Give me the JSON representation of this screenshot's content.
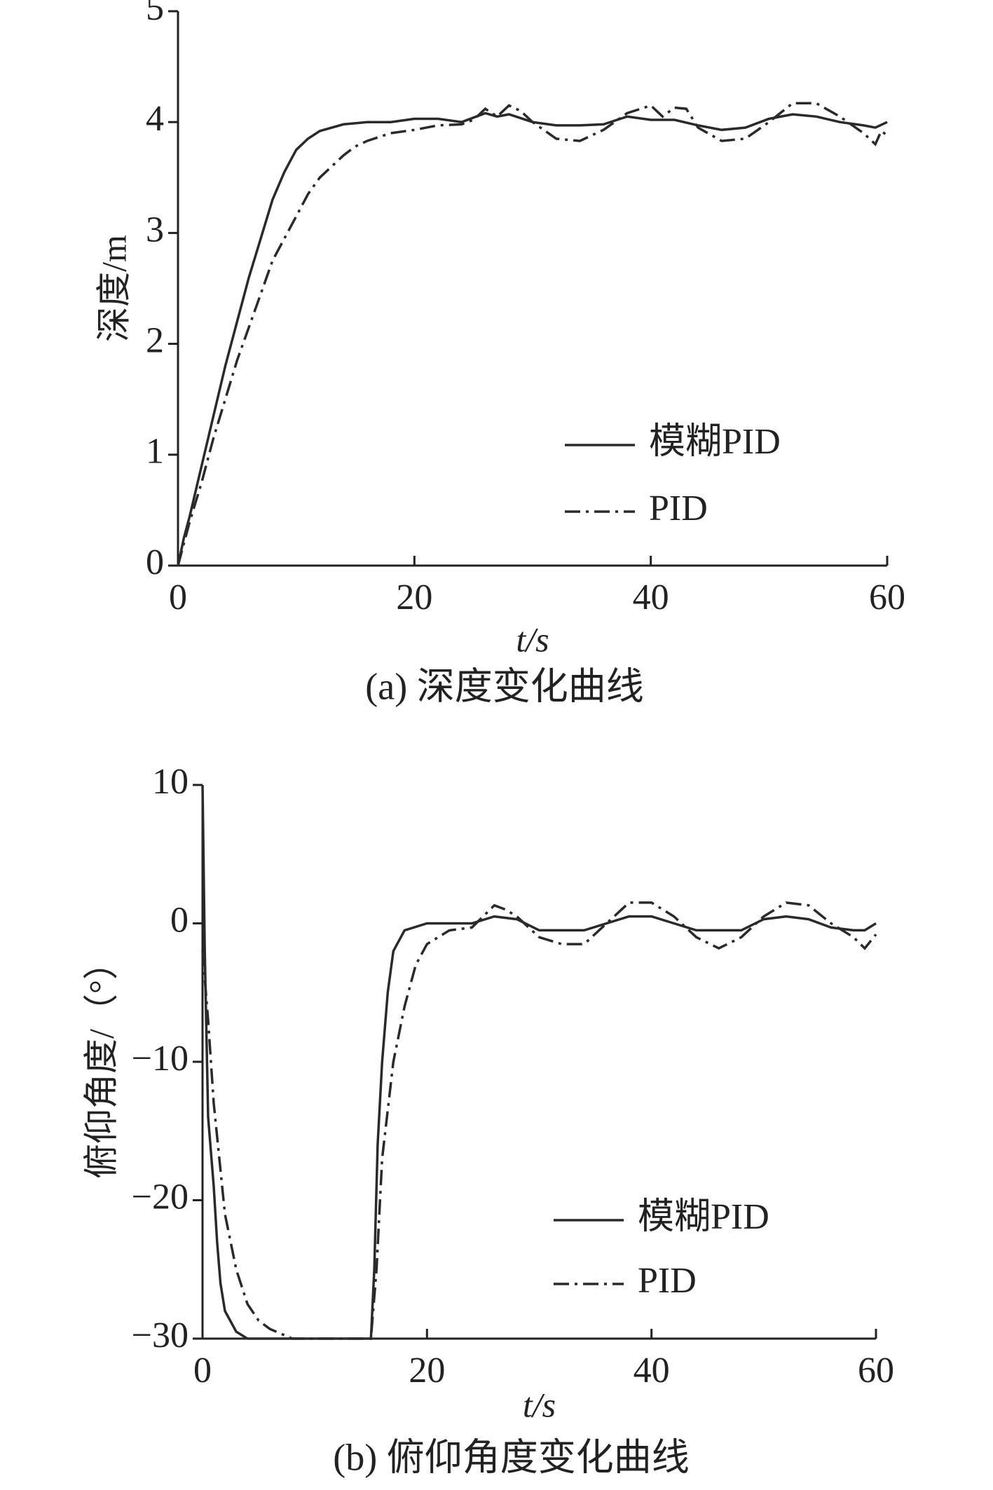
{
  "chart_data": [
    {
      "type": "line",
      "caption": "(a) 深度变化曲线",
      "x_label": "t/s",
      "y_label": "深度/m",
      "xlim": [
        0,
        60
      ],
      "ylim": [
        0,
        5
      ],
      "xticks": [
        0,
        20,
        40,
        60
      ],
      "yticks": [
        0,
        1,
        2,
        3,
        4,
        5
      ],
      "legend": "right",
      "series": [
        {
          "name": "模糊PID",
          "color": "#2a2a2a",
          "linestyle": "solid",
          "x": [
            0,
            0.5,
            1,
            2,
            3,
            4,
            5,
            6,
            7,
            8,
            9,
            10,
            11,
            12,
            14,
            16,
            18,
            20,
            22,
            24,
            26,
            27,
            28,
            30,
            32,
            34,
            36,
            38,
            40,
            42,
            44,
            46,
            48,
            50,
            52,
            54,
            56,
            58,
            59,
            60
          ],
          "values": [
            0,
            0.25,
            0.45,
            0.9,
            1.35,
            1.8,
            2.2,
            2.6,
            2.95,
            3.3,
            3.55,
            3.75,
            3.85,
            3.92,
            3.98,
            4.0,
            4.0,
            4.03,
            4.03,
            4.0,
            4.08,
            4.05,
            4.07,
            4.0,
            3.97,
            3.97,
            3.98,
            4.05,
            4.02,
            4.02,
            3.97,
            3.93,
            3.95,
            4.03,
            4.07,
            4.05,
            4.0,
            3.97,
            3.95,
            4.0
          ]
        },
        {
          "name": "PID",
          "color": "#2a2a2a",
          "linestyle": "dashdot",
          "x": [
            0,
            0.5,
            1,
            2,
            3,
            4,
            5,
            6,
            7,
            8,
            9,
            10,
            11,
            12,
            13,
            14,
            15,
            16,
            18,
            20,
            22,
            24,
            25,
            26,
            27,
            28,
            29,
            30,
            32,
            34,
            36,
            38,
            40,
            41,
            42,
            43,
            44,
            46,
            48,
            50,
            52,
            54,
            56,
            58,
            59,
            59.5,
            60
          ],
          "values": [
            0,
            0.2,
            0.4,
            0.75,
            1.15,
            1.5,
            1.85,
            2.15,
            2.45,
            2.75,
            2.95,
            3.15,
            3.35,
            3.5,
            3.6,
            3.7,
            3.78,
            3.83,
            3.9,
            3.93,
            3.97,
            3.98,
            4.02,
            4.12,
            4.05,
            4.15,
            4.1,
            4.0,
            3.85,
            3.83,
            3.93,
            4.08,
            4.15,
            4.05,
            4.13,
            4.12,
            3.95,
            3.83,
            3.85,
            4.0,
            4.17,
            4.17,
            4.05,
            3.9,
            3.8,
            3.92,
            3.88
          ]
        }
      ]
    },
    {
      "type": "line",
      "caption": "(b) 俯仰角度变化曲线",
      "x_label": "t/s",
      "y_label": "俯仰角度/（°）",
      "xlim": [
        0,
        60
      ],
      "ylim": [
        -30,
        10
      ],
      "xticks": [
        0,
        20,
        40,
        60
      ],
      "yticks": [
        10,
        0,
        {
          "value": -10,
          "label": "−10"
        },
        {
          "value": -20,
          "label": "−20"
        },
        {
          "value": -30,
          "label": "−30"
        }
      ],
      "legend": "right",
      "series": [
        {
          "name": "模糊PID",
          "color": "#2a2a2a",
          "linestyle": "solid",
          "x": [
            0,
            0.2,
            0.5,
            1,
            1.3,
            1.6,
            2,
            3,
            4,
            15,
            15.3,
            15.6,
            16,
            16.5,
            17,
            18,
            20,
            24,
            26,
            28,
            30,
            34,
            38,
            40,
            42,
            44,
            48,
            50,
            52,
            54,
            56,
            58,
            59,
            60
          ],
          "values": [
            10,
            -2,
            -14,
            -19,
            -23,
            -26,
            -28,
            -29.5,
            -30,
            -30,
            -25,
            -16,
            -10,
            -5,
            -2,
            -0.5,
            0,
            0,
            0.5,
            0.3,
            -0.5,
            -0.5,
            0.5,
            0.5,
            0,
            -0.5,
            -0.5,
            0.3,
            0.5,
            0.3,
            -0.3,
            -0.5,
            -0.5,
            0
          ]
        },
        {
          "name": "PID",
          "color": "#2a2a2a",
          "linestyle": "dashdot",
          "x": [
            0,
            0.5,
            1,
            1.5,
            2,
            3,
            4,
            5,
            6,
            8,
            15,
            15.5,
            16,
            17,
            18,
            19,
            20,
            22,
            24,
            26,
            27,
            28,
            30,
            32,
            34,
            36,
            38,
            40,
            42,
            44,
            46,
            48,
            50,
            52,
            54,
            56,
            58,
            59,
            60
          ],
          "values": [
            -2,
            -7,
            -13,
            -17,
            -21,
            -25,
            -27.5,
            -28.7,
            -29.3,
            -30,
            -30,
            -25,
            -17,
            -10,
            -6,
            -3,
            -1.5,
            -0.5,
            -0.3,
            1.3,
            1,
            0.5,
            -1,
            -1.5,
            -1.5,
            0,
            1.5,
            1.5,
            0.5,
            -1,
            -1.8,
            -1,
            0.5,
            1.5,
            1.3,
            0,
            -1,
            -1.8,
            -0.8
          ]
        }
      ]
    }
  ]
}
